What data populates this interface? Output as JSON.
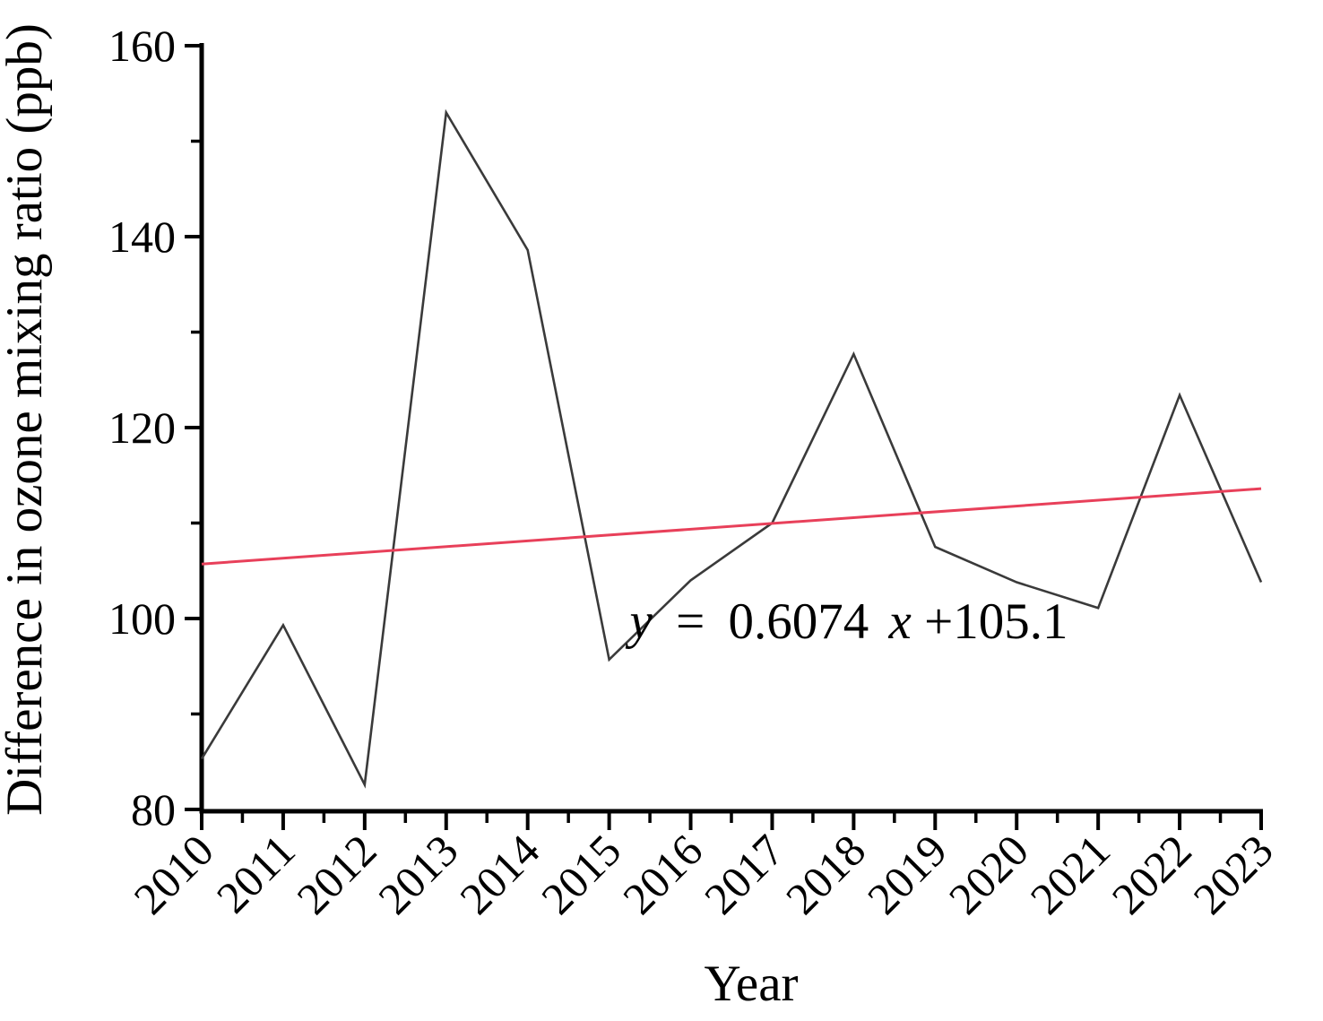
{
  "chart_data": {
    "type": "line",
    "title": "",
    "xlabel": "Year",
    "ylabel": "Difference in ozone mixing ratio (ppb)",
    "categories": [
      2010,
      2011,
      2012,
      2013,
      2014,
      2015,
      2016,
      2017,
      2018,
      2019,
      2020,
      2021,
      2022,
      2023
    ],
    "series": [
      {
        "name": "Difference in ozone mixing ratio",
        "color": "#3a3a3a",
        "values": [
          85.3,
          99.3,
          82.6,
          153.0,
          138.6,
          95.7,
          104.0,
          110.0,
          127.7,
          107.5,
          103.8,
          101.1,
          123.4,
          103.8
        ]
      }
    ],
    "trendline": {
      "type": "linear",
      "slope": 0.6074,
      "intercept": 105.1,
      "x_definition": "x = 1 at 2010 through x = 14 at 2023",
      "color": "#e8405a",
      "equation_text": "y = 0.6074x+105.1",
      "equation_parts": {
        "lhs": "y",
        "equals": "=",
        "coefficient": "0.6074",
        "variable": "x",
        "constant": "+105.1"
      },
      "equation_color": "#de2530"
    },
    "ylim": [
      80,
      160
    ],
    "yticks": [
      80,
      100,
      120,
      140,
      160
    ],
    "yticks_minor": [
      90,
      110,
      130,
      150
    ],
    "xticks_minor_offset": 0.5,
    "x_tick_label_rotation": 45,
    "grid": false,
    "legend": "none",
    "axis_color": "#000000",
    "tick_label_color": "#000000"
  }
}
